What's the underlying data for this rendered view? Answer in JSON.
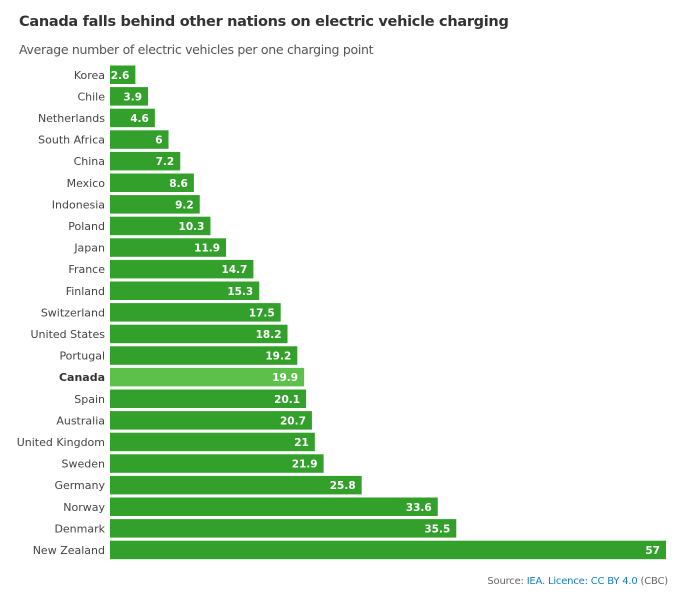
{
  "title": "Canada falls behind other nations on electric vehicle charging",
  "subtitle": "Average number of electric vehicles per one charging point",
  "source": {
    "prefix": "Source: ",
    "link": "IEA. Licence: CC BY 4.0",
    "suffix": " (CBC)"
  },
  "colors": {
    "bar": "#33a02c",
    "highlight": "#5cc04b"
  },
  "chart_data": {
    "type": "bar",
    "orientation": "horizontal",
    "title": "Canada falls behind other nations on electric vehicle charging",
    "subtitle": "Average number of electric vehicles per one charging point",
    "xlabel": "",
    "ylabel": "",
    "xlim": [
      0,
      57
    ],
    "grid": false,
    "highlight": "Canada",
    "categories": [
      "Korea",
      "Chile",
      "Netherlands",
      "South Africa",
      "China",
      "Mexico",
      "Indonesia",
      "Poland",
      "Japan",
      "France",
      "Finland",
      "Switzerland",
      "United States",
      "Portugal",
      "Canada",
      "Spain",
      "Australia",
      "United Kingdom",
      "Sweden",
      "Germany",
      "Norway",
      "Denmark",
      "New Zealand"
    ],
    "values": [
      2.6,
      3.9,
      4.6,
      6,
      7.2,
      8.6,
      9.2,
      10.3,
      11.9,
      14.7,
      15.3,
      17.5,
      18.2,
      19.2,
      19.9,
      20.1,
      20.7,
      21,
      21.9,
      25.8,
      33.6,
      35.5,
      57
    ],
    "value_labels": [
      "2.6",
      "3.9",
      "4.6",
      "6",
      "7.2",
      "8.6",
      "9.2",
      "10.3",
      "11.9",
      "14.7",
      "15.3",
      "17.5",
      "18.2",
      "19.2",
      "19.9",
      "20.1",
      "20.7",
      "21",
      "21.9",
      "25.8",
      "33.6",
      "35.5",
      "57"
    ]
  }
}
